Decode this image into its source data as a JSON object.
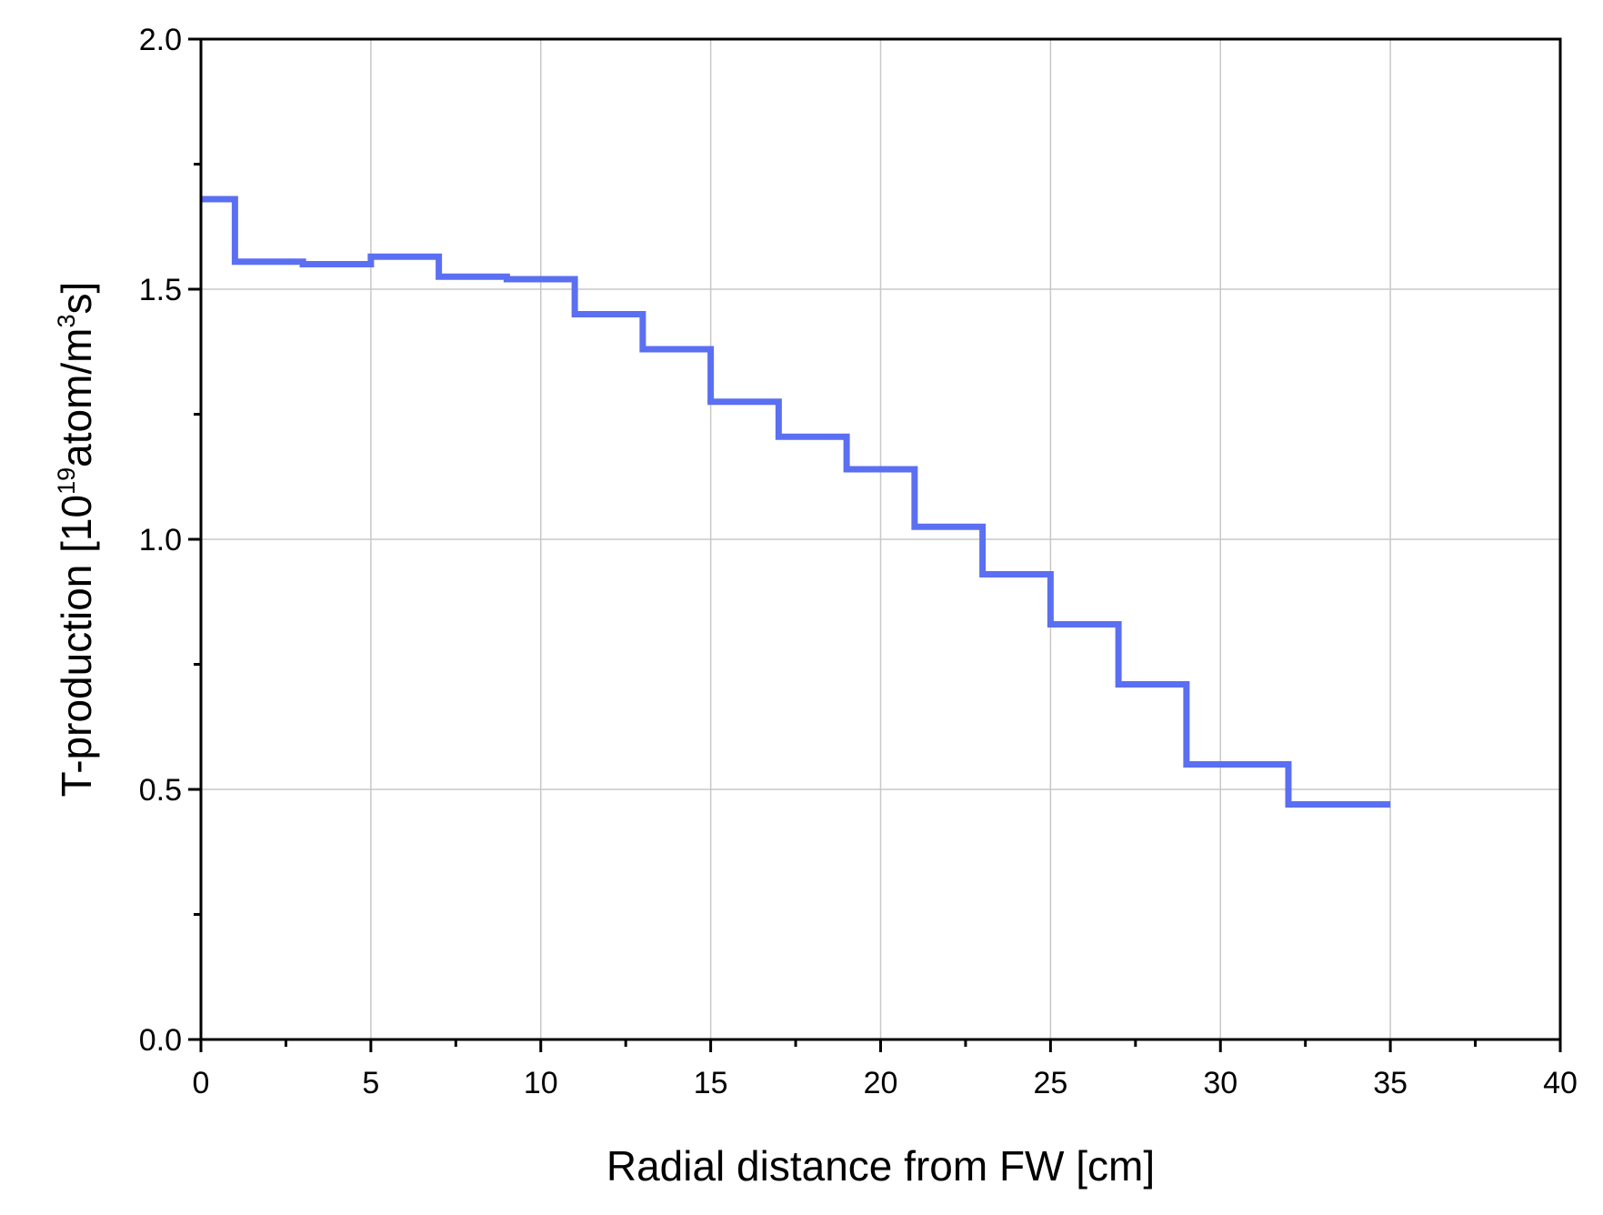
{
  "chart_data": {
    "type": "line",
    "drawstyle": "steps-post",
    "xlabel": "Radial distance from FW [cm]",
    "ylabel": {
      "prefix": "T-production [10",
      "exp1": "19",
      "middle": "atom/m",
      "exp2": "3",
      "suffix": "s]"
    },
    "xlim": [
      0,
      40
    ],
    "ylim": [
      0,
      2.0
    ],
    "x_ticks": [
      0,
      5,
      10,
      15,
      20,
      25,
      30,
      35,
      40
    ],
    "x_tick_labels": [
      "0",
      "5",
      "10",
      "15",
      "20",
      "25",
      "30",
      "35",
      "40"
    ],
    "y_ticks": [
      0,
      0.5,
      1.0,
      1.5,
      2.0
    ],
    "y_tick_labels": [
      "0.0",
      "0.5",
      "1.0",
      "1.5",
      "2.0"
    ],
    "grid": true,
    "line_color": "#5b6ff2",
    "series": [
      {
        "x": [
          0,
          1,
          3,
          5,
          7,
          9,
          11,
          13,
          15,
          17,
          19,
          21,
          23,
          25,
          27,
          29,
          32,
          35
        ],
        "y": [
          1.68,
          1.555,
          1.55,
          1.565,
          1.525,
          1.52,
          1.45,
          1.38,
          1.275,
          1.205,
          1.14,
          1.025,
          0.93,
          0.83,
          0.71,
          0.55,
          0.47,
          0.47
        ]
      }
    ]
  }
}
